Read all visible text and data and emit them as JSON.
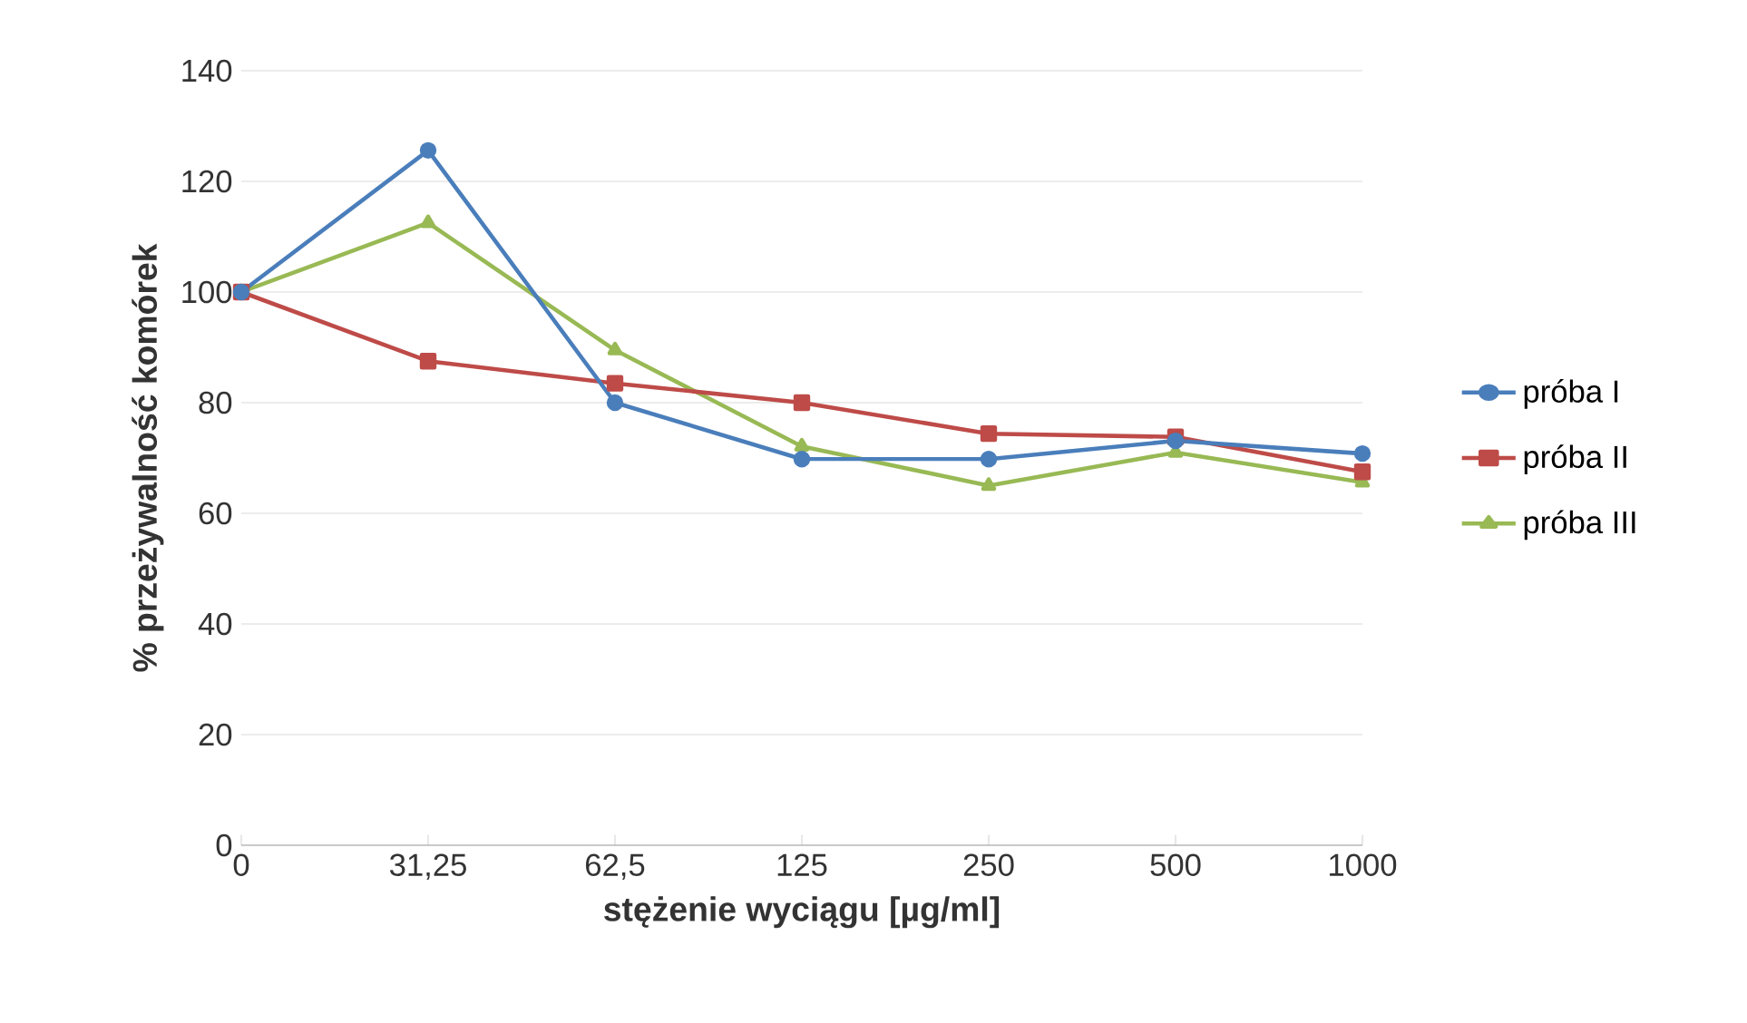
{
  "chart_data": {
    "type": "line",
    "xlabel": "stężenie wyciągu [µg/ml]",
    "ylabel": "% przeżywalność komórek",
    "categories": [
      "0",
      "31,25",
      "62,5",
      "125",
      "250",
      "500",
      "1000"
    ],
    "series": [
      {
        "name": "próba I",
        "color": "#4a7ebb",
        "marker": "circle",
        "values": [
          100,
          125.6,
          80,
          69.8,
          69.8,
          73.1,
          70.8
        ]
      },
      {
        "name": "próba II",
        "color": "#be4b48",
        "marker": "square",
        "values": [
          100,
          87.5,
          83.5,
          80,
          74.4,
          73.8,
          67.5
        ]
      },
      {
        "name": "próba III",
        "color": "#98b954",
        "marker": "triangle",
        "values": [
          100,
          112.5,
          89.5,
          72.1,
          65,
          71,
          65.6
        ]
      }
    ],
    "ylim": [
      0,
      140
    ],
    "yticks": [
      0,
      20,
      40,
      60,
      80,
      100,
      120,
      140
    ],
    "grid": "y",
    "legend": "right"
  }
}
